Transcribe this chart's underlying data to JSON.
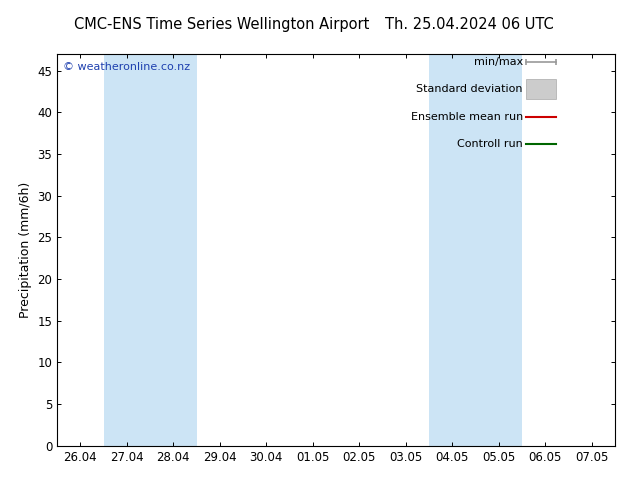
{
  "title_left": "CMC-ENS Time Series Wellington Airport",
  "title_right": "Th. 25.04.2024 06 UTC",
  "ylabel": "Precipitation (mm/6h)",
  "ylim": [
    0,
    47
  ],
  "yticks": [
    0,
    5,
    10,
    15,
    20,
    25,
    30,
    35,
    40,
    45
  ],
  "xtick_labels": [
    "26.04",
    "27.04",
    "28.04",
    "29.04",
    "30.04",
    "01.05",
    "02.05",
    "03.05",
    "04.05",
    "05.05",
    "06.05",
    "07.05"
  ],
  "xtick_positions": [
    0,
    1,
    2,
    3,
    4,
    5,
    6,
    7,
    8,
    9,
    10,
    11
  ],
  "blue_bands": [
    {
      "xstart": 0.5,
      "xend": 1.5
    },
    {
      "xstart": 1.5,
      "xend": 2.5
    },
    {
      "xstart": 7.5,
      "xend": 8.5
    },
    {
      "xstart": 8.5,
      "xend": 9.5
    }
  ],
  "band_color": "#cce4f5",
  "copyright_text": "© weatheronline.co.nz",
  "copyright_color": "#1e40af",
  "legend_labels": [
    "min/max",
    "Standard deviation",
    "Ensemble mean run",
    "Controll run"
  ],
  "bg_color": "#ffffff",
  "plot_bg_color": "#ffffff",
  "border_color": "#000000",
  "title_fontsize": 10.5,
  "axis_label_fontsize": 9,
  "tick_fontsize": 8.5,
  "legend_fontsize": 8
}
